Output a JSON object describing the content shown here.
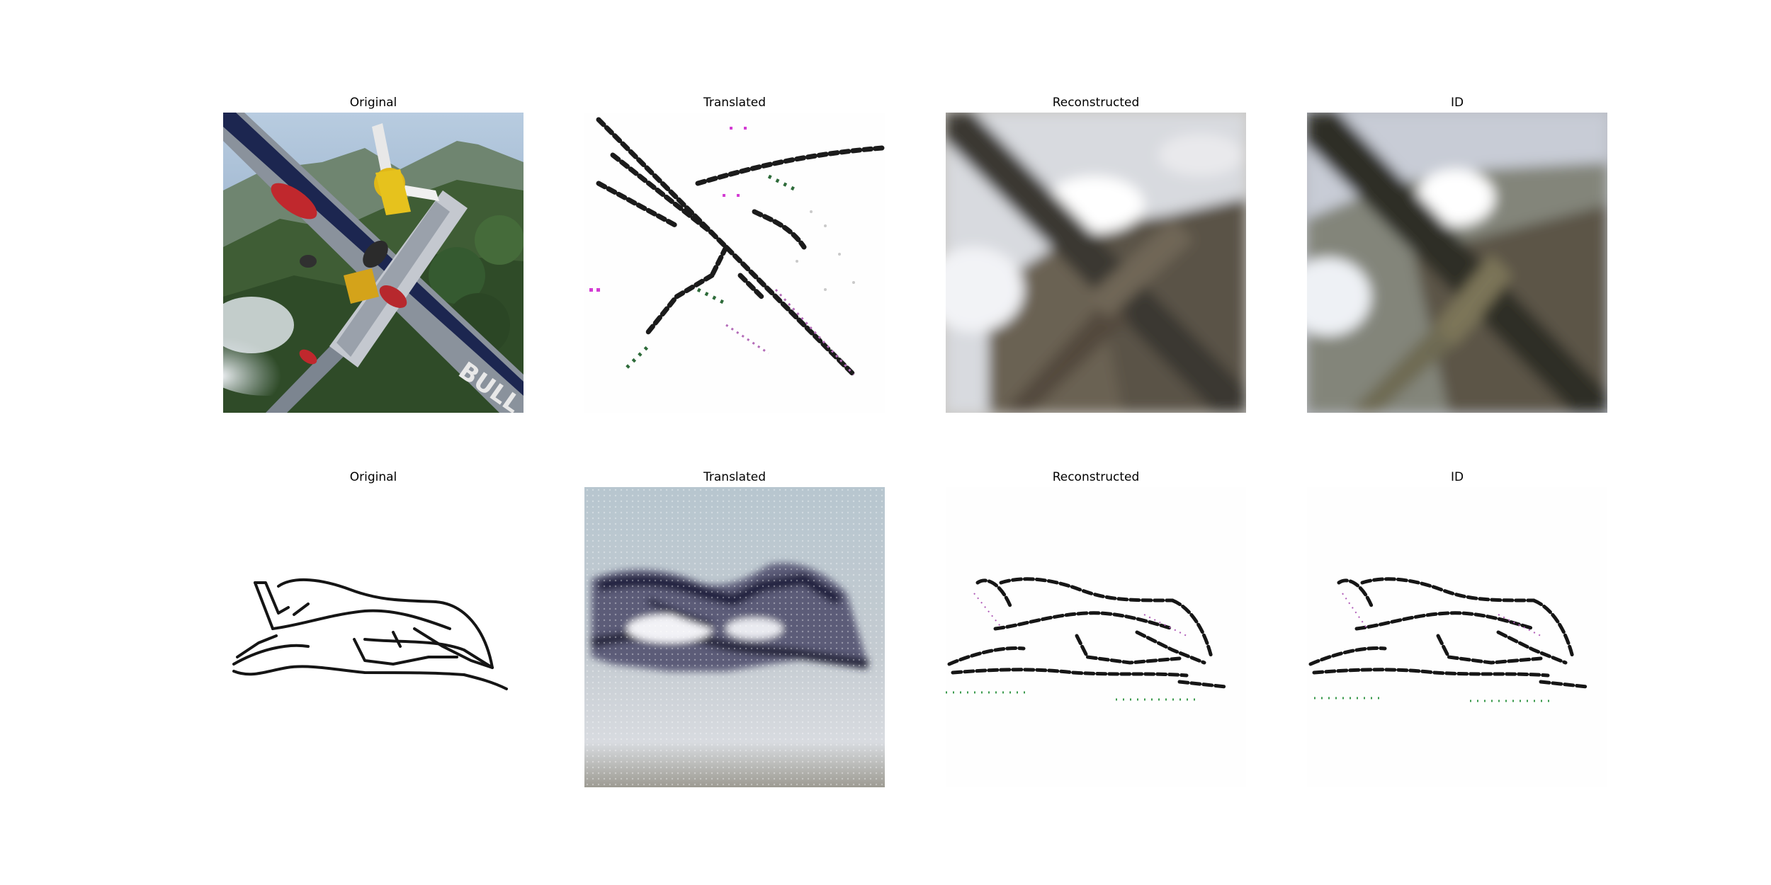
{
  "rows": [
    {
      "titles": [
        "Original",
        "Translated",
        "Reconstructed",
        "ID"
      ]
    },
    {
      "titles": [
        "Original",
        "Translated",
        "Reconstructed",
        "ID"
      ]
    }
  ],
  "colors": {
    "sky": "#a9bfd8",
    "forest": "#3a5a2e",
    "wing_dark": "#2a3a6a",
    "propeller_yellow": "#e8c21a",
    "sepia": "#6b6150",
    "sketch_ink": "#111111"
  }
}
